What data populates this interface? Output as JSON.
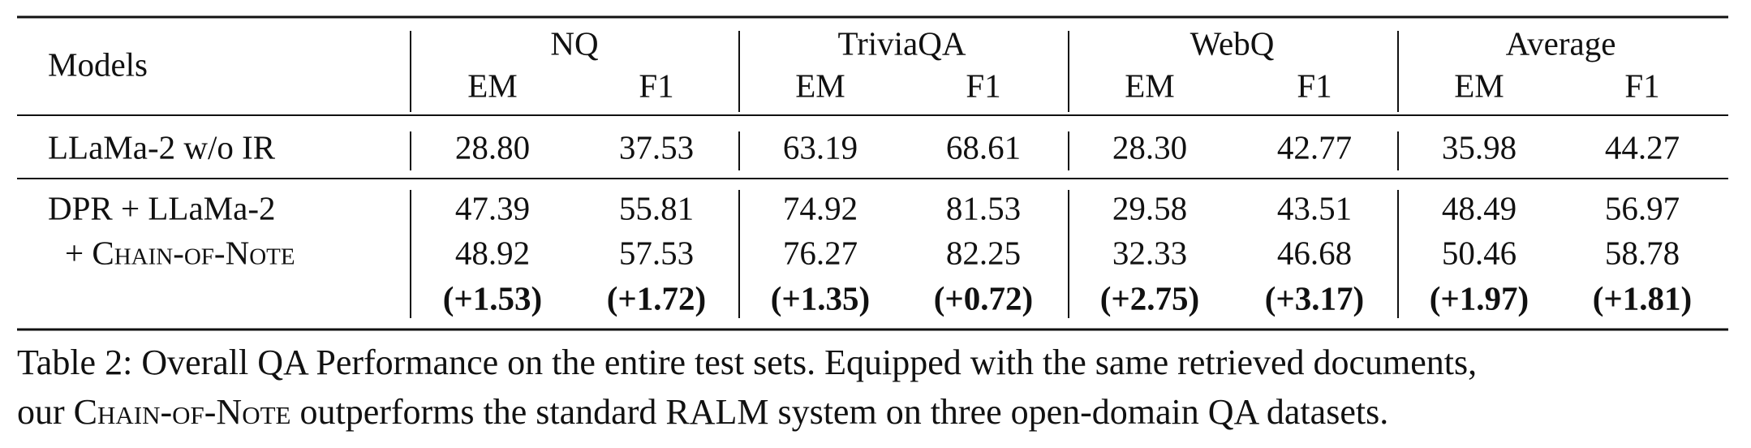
{
  "table": {
    "header": {
      "first": "Models",
      "datasets": [
        "NQ",
        "TriviaQA",
        "WebQ",
        "Average"
      ],
      "metrics": [
        "EM",
        "F1"
      ]
    },
    "rows": [
      {
        "model": "LLaMa-2 w/o IR",
        "cells": [
          "28.80",
          "37.53",
          "63.19",
          "68.61",
          "28.30",
          "42.77",
          "35.98",
          "44.27"
        ]
      },
      {
        "model": "DPR + LLaMa-2",
        "cells": [
          "47.39",
          "55.81",
          "74.92",
          "81.53",
          "29.58",
          "43.51",
          "48.49",
          "56.97"
        ]
      },
      {
        "model": "+ Chain-of-Note",
        "cells": [
          "48.92",
          "57.53",
          "76.27",
          "82.25",
          "32.33",
          "46.68",
          "50.46",
          "58.78"
        ]
      }
    ],
    "gains": [
      "(+1.53)",
      "(+1.72)",
      "(+1.35)",
      "(+0.72)",
      "(+2.75)",
      "(+3.17)",
      "(+1.97)",
      "(+1.81)"
    ]
  },
  "caption": {
    "line1": "Table 2: Overall QA Performance on the entire test sets. Equipped with the same retrieved documents,",
    "line2": [
      "our ",
      "Chain-of-Note",
      " outperforms the standard RALM system on three open-domain QA datasets."
    ]
  }
}
